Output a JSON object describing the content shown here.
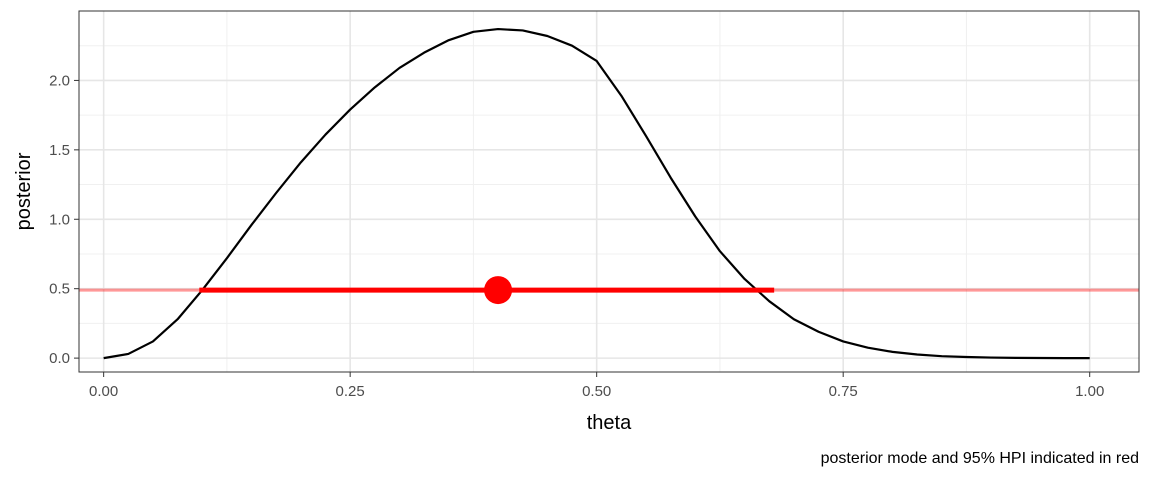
{
  "chart_data": {
    "type": "line",
    "title": "",
    "xlabel": "theta",
    "ylabel": "posterior",
    "caption": "posterior mode and 95% HPI indicated in red",
    "xlim": [
      -0.025,
      1.05
    ],
    "ylim": [
      -0.1,
      2.5
    ],
    "x_ticks": [
      0.0,
      0.25,
      0.5,
      0.75,
      1.0
    ],
    "x_tick_labels": [
      "0.00",
      "0.25",
      "0.50",
      "0.75",
      "1.00"
    ],
    "y_ticks": [
      0.0,
      0.5,
      1.0,
      1.5,
      2.0
    ],
    "y_tick_labels": [
      "0.0",
      "0.5",
      "1.0",
      "1.5",
      "2.0"
    ],
    "grid": true,
    "series": [
      {
        "color": "#000000",
        "x": [
          0.0,
          0.025,
          0.05,
          0.075,
          0.1,
          0.125,
          0.15,
          0.175,
          0.2,
          0.225,
          0.25,
          0.275,
          0.3,
          0.325,
          0.35,
          0.375,
          0.4,
          0.425,
          0.45,
          0.475,
          0.5,
          0.525,
          0.55,
          0.575,
          0.6,
          0.625,
          0.65,
          0.675,
          0.7,
          0.725,
          0.75,
          0.775,
          0.8,
          0.825,
          0.85,
          0.875,
          0.9,
          0.925,
          0.95,
          0.975,
          1.0
        ],
        "y": [
          0.0,
          0.03,
          0.12,
          0.28,
          0.49,
          0.72,
          0.96,
          1.19,
          1.41,
          1.61,
          1.79,
          1.95,
          2.09,
          2.2,
          2.29,
          2.35,
          2.37,
          2.36,
          2.32,
          2.25,
          2.14,
          1.89,
          1.6,
          1.3,
          1.02,
          0.77,
          0.57,
          0.41,
          0.28,
          0.19,
          0.12,
          0.075,
          0.045,
          0.026,
          0.014,
          0.008,
          0.004,
          0.002,
          0.001,
          0.0,
          0.0
        ]
      }
    ],
    "annotations": {
      "color": "#ff0000",
      "mode": {
        "x": 0.4,
        "y": 0.49
      },
      "hpi": {
        "lower": 0.097,
        "upper": 0.68,
        "y": 0.49
      },
      "hline_y": 0.49
    }
  }
}
